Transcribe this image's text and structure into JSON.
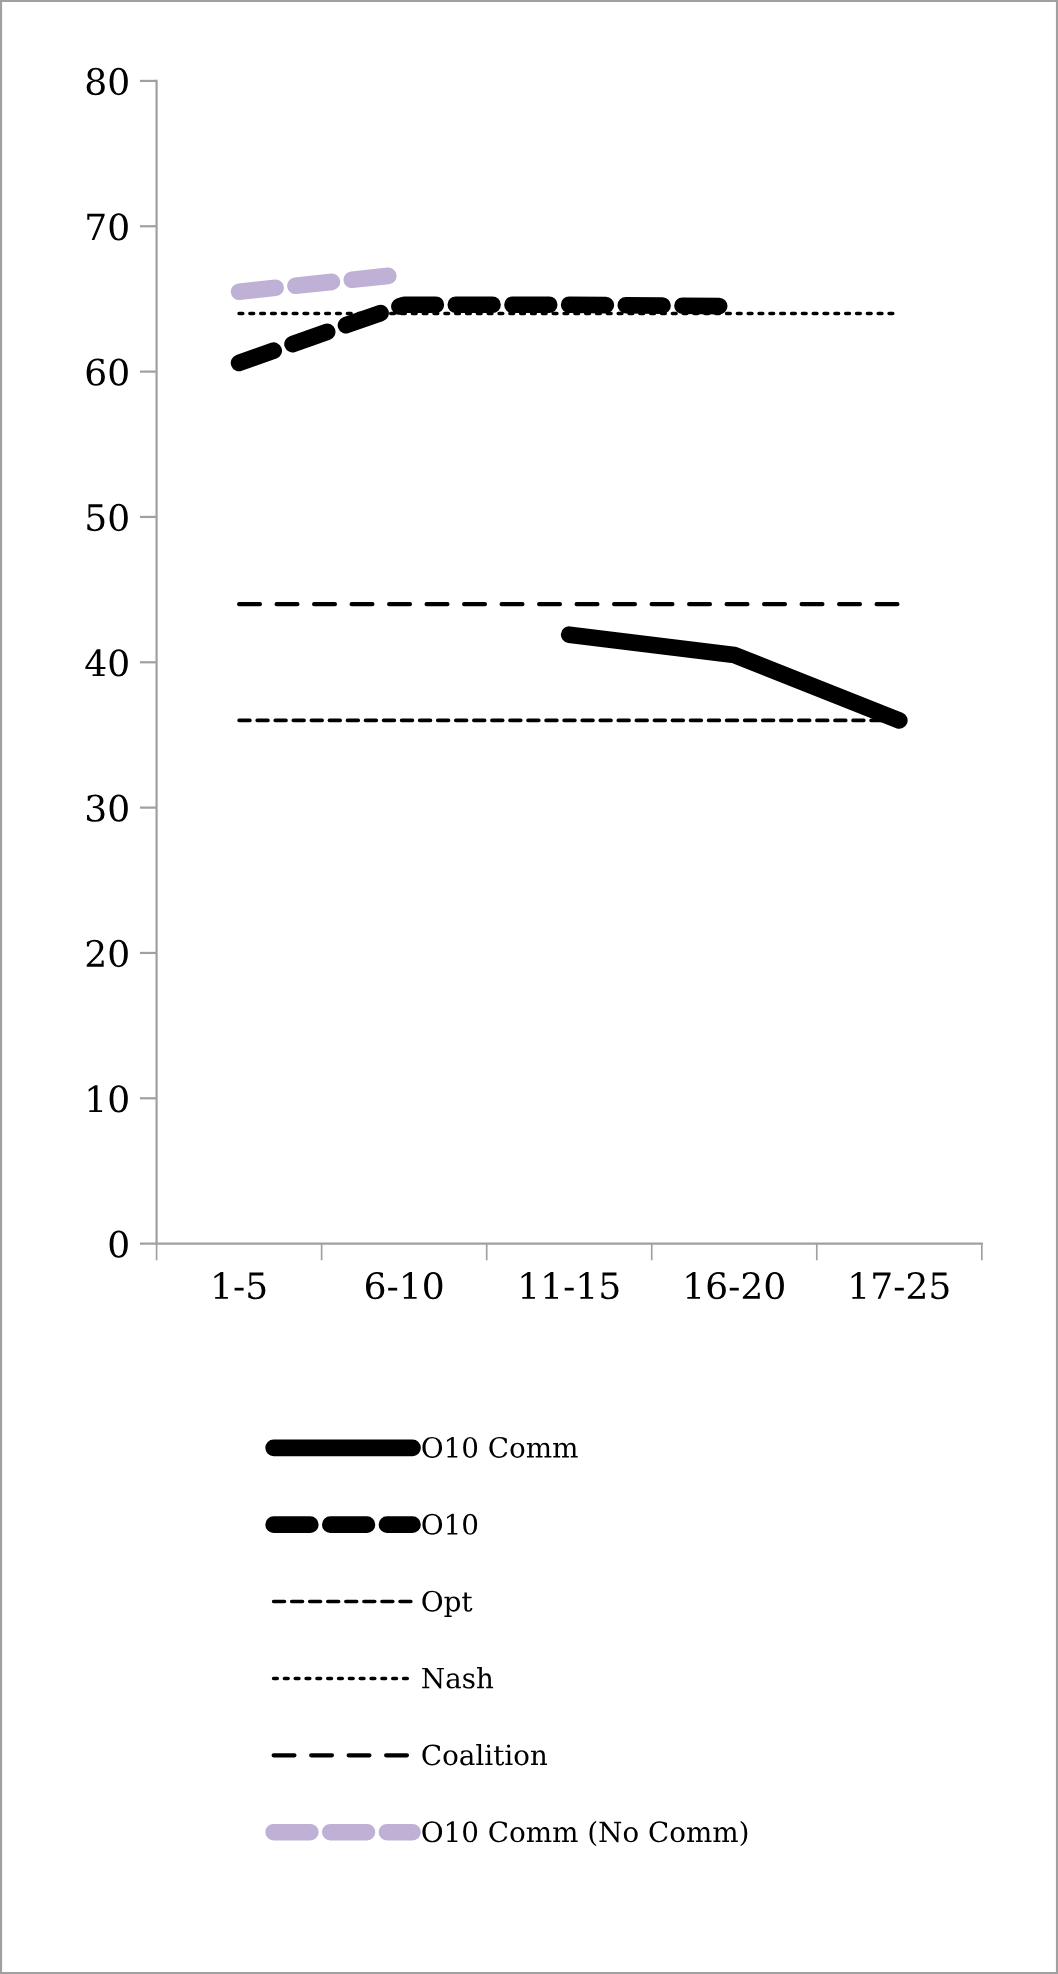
{
  "chart_data": {
    "type": "line",
    "categories": [
      "1-5",
      "6-10",
      "11-15",
      "16-20",
      "17-25"
    ],
    "series": [
      {
        "name": "O10 Comm",
        "color": "#000000",
        "line_style": "solid",
        "values": [
          null,
          null,
          41.9,
          40.5,
          36.0
        ]
      },
      {
        "name": "O10",
        "color": "#000000",
        "line_style": "dashed",
        "values": [
          60.6,
          64.6,
          64.6,
          64.5,
          null
        ]
      },
      {
        "name": "Opt",
        "color": "#000000",
        "line_style": "dashed",
        "values": [
          36,
          36,
          36,
          36,
          36
        ]
      },
      {
        "name": "Nash",
        "color": "#000000",
        "line_style": "dotted",
        "values": [
          64,
          64,
          64,
          64,
          64
        ]
      },
      {
        "name": "Coalition",
        "color": "#000000",
        "line_style": "dashed",
        "values": [
          44,
          44,
          44,
          44,
          44
        ]
      },
      {
        "name": "O10 Comm (No Comm)",
        "color": "#bfb0d6",
        "line_style": "dashed",
        "values": [
          65.5,
          66.7,
          null,
          null,
          null
        ]
      }
    ],
    "ylim": [
      0,
      80
    ],
    "yticks": [
      0,
      10,
      20,
      30,
      40,
      50,
      60,
      70,
      80
    ],
    "grid": false,
    "legend": "bottom",
    "marker": "none"
  }
}
